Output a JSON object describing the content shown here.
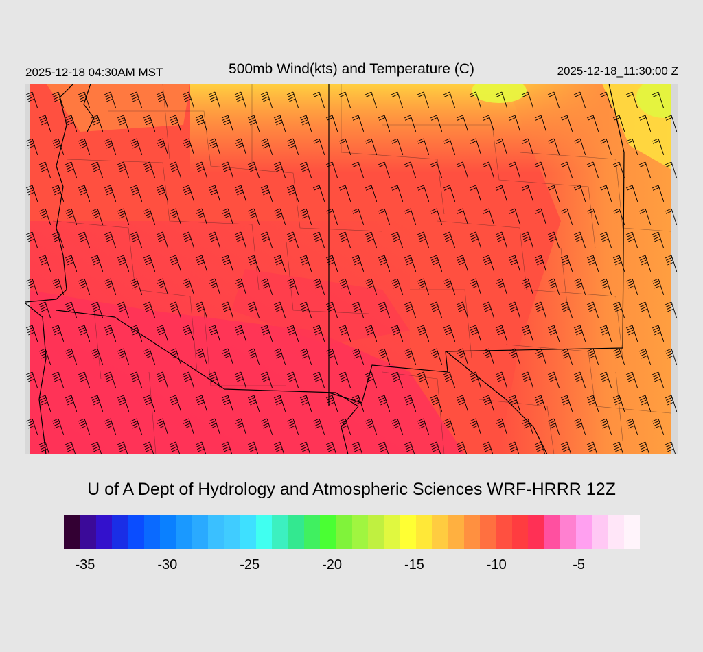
{
  "header": {
    "local_time": "2025-12-18 04:30AM MST",
    "title": "500mb Wind(kts) and Temperature (C)",
    "utc_time": "2025-12-18_11:30:00 Z"
  },
  "footer": {
    "credit": "U of A Dept of Hydrology and Atmospheric Sciences WRF-HRRR 12Z"
  },
  "colorbar": {
    "colors": [
      "#330033",
      "#3b0a99",
      "#3311cc",
      "#1a2ee6",
      "#0a4dff",
      "#0a6aff",
      "#0a80ff",
      "#1a99ff",
      "#2aaaff",
      "#3ac0ff",
      "#40ccff",
      "#3ee0ff",
      "#40fff0",
      "#3cf0c0",
      "#33e890",
      "#40f060",
      "#4aff33",
      "#80f33a",
      "#a0f540",
      "#c0f040",
      "#e0f840",
      "#ffff33",
      "#ffe838",
      "#ffcc40",
      "#ffb040",
      "#ff9040",
      "#ff7040",
      "#ff5040",
      "#ff3c40",
      "#ff3055",
      "#ff50a0",
      "#ff80d0",
      "#ffa0f0",
      "#ffc8f4",
      "#ffe6f8",
      "#fff4fb"
    ],
    "tick_labels": [
      "-35",
      "-30",
      "-25",
      "-20",
      "-15",
      "-10",
      "-5"
    ],
    "tick_values": [
      -35,
      -30,
      -25,
      -20,
      -15,
      -10,
      -5
    ],
    "range": [
      -36,
      -1
    ]
  },
  "map": {
    "field": "500mb temperature (C)",
    "temperature_range_c": [
      -12,
      -7
    ],
    "wind_direction": "northwesterly"
  }
}
